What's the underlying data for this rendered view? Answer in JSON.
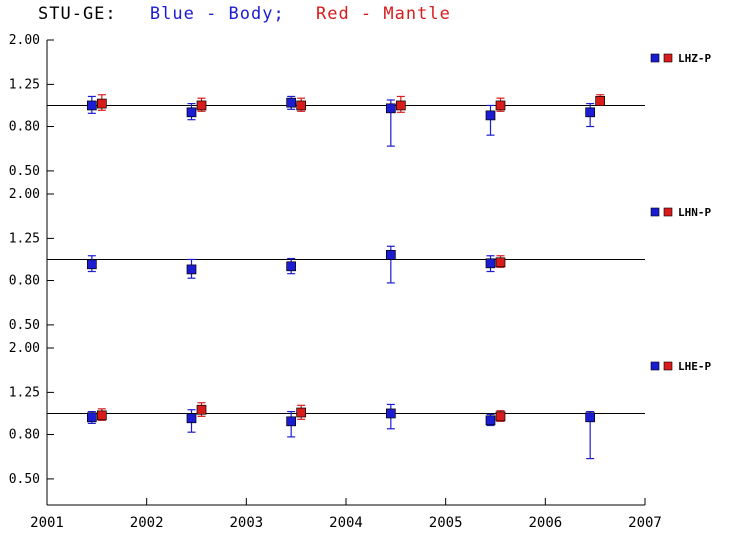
{
  "title": {
    "station": "STU-GE:",
    "legend_blue": "Blue - Body;",
    "legend_red": "Red - Mantle"
  },
  "colors": {
    "body": "#1c1cd2",
    "mantle": "#d81c1c",
    "axis": "#000000",
    "background": "#ffffff"
  },
  "axes": {
    "x_ticks": [
      2001,
      2002,
      2003,
      2004,
      2005,
      2006,
      2007
    ],
    "x_tick_labels": [
      "2001",
      "2002",
      "2003",
      "2004",
      "2005",
      "2006",
      "2007"
    ],
    "y_ticks": [
      2.0,
      1.25,
      0.8,
      0.5
    ],
    "y_tick_labels": [
      "2.00",
      "1.25",
      "0.80",
      "0.50"
    ],
    "y_scale": "log",
    "x_range": [
      2001,
      2007
    ]
  },
  "chart_data": [
    {
      "type": "scatter",
      "panel_label": "LHZ-P",
      "reference_line": 1.0,
      "series": [
        {
          "name": "Body",
          "color_key": "body",
          "points": [
            {
              "x": 2001.5,
              "y": 1.0,
              "lo": 0.92,
              "hi": 1.1
            },
            {
              "x": 2002.5,
              "y": 0.93,
              "lo": 0.86,
              "hi": 1.02
            },
            {
              "x": 2003.5,
              "y": 1.03,
              "lo": 0.96,
              "hi": 1.1
            },
            {
              "x": 2004.5,
              "y": 0.97,
              "lo": 0.65,
              "hi": 1.06
            },
            {
              "x": 2005.5,
              "y": 0.9,
              "lo": 0.73,
              "hi": 1.0
            },
            {
              "x": 2006.5,
              "y": 0.93,
              "lo": 0.8,
              "hi": 1.02
            }
          ]
        },
        {
          "name": "Mantle",
          "color_key": "mantle",
          "points": [
            {
              "x": 2001.5,
              "y": 1.02,
              "lo": 0.95,
              "hi": 1.12
            },
            {
              "x": 2002.5,
              "y": 1.0,
              "lo": 0.94,
              "hi": 1.08
            },
            {
              "x": 2003.5,
              "y": 1.0,
              "lo": 0.94,
              "hi": 1.08
            },
            {
              "x": 2004.5,
              "y": 1.0,
              "lo": 0.93,
              "hi": 1.1
            },
            {
              "x": 2005.5,
              "y": 1.0,
              "lo": 0.94,
              "hi": 1.08
            },
            {
              "x": 2006.5,
              "y": 1.05,
              "lo": 1.0,
              "hi": 1.12
            }
          ]
        }
      ]
    },
    {
      "type": "scatter",
      "panel_label": "LHN-P",
      "reference_line": 1.0,
      "series": [
        {
          "name": "Body",
          "color_key": "body",
          "points": [
            {
              "x": 2001.5,
              "y": 0.95,
              "lo": 0.88,
              "hi": 1.04
            },
            {
              "x": 2002.5,
              "y": 0.9,
              "lo": 0.82,
              "hi": 1.0
            },
            {
              "x": 2003.5,
              "y": 0.93,
              "lo": 0.86,
              "hi": 1.01
            },
            {
              "x": 2004.5,
              "y": 1.05,
              "lo": 0.78,
              "hi": 1.15
            },
            {
              "x": 2005.5,
              "y": 0.96,
              "lo": 0.88,
              "hi": 1.04
            }
          ]
        },
        {
          "name": "Mantle",
          "color_key": "mantle",
          "points": [
            {
              "x": 2005.5,
              "y": 0.97,
              "lo": 0.92,
              "hi": 1.04
            }
          ]
        }
      ]
    },
    {
      "type": "scatter",
      "panel_label": "LHE-P",
      "reference_line": 1.0,
      "series": [
        {
          "name": "Body",
          "color_key": "body",
          "points": [
            {
              "x": 2001.5,
              "y": 0.96,
              "lo": 0.9,
              "hi": 1.02
            },
            {
              "x": 2002.5,
              "y": 0.95,
              "lo": 0.82,
              "hi": 1.04
            },
            {
              "x": 2003.5,
              "y": 0.92,
              "lo": 0.78,
              "hi": 1.02
            },
            {
              "x": 2004.5,
              "y": 1.0,
              "lo": 0.85,
              "hi": 1.1
            },
            {
              "x": 2005.5,
              "y": 0.93,
              "lo": 0.88,
              "hi": 0.99
            },
            {
              "x": 2006.5,
              "y": 0.96,
              "lo": 0.62,
              "hi": 1.02
            }
          ]
        },
        {
          "name": "Mantle",
          "color_key": "mantle",
          "points": [
            {
              "x": 2001.5,
              "y": 0.98,
              "lo": 0.93,
              "hi": 1.05
            },
            {
              "x": 2002.5,
              "y": 1.04,
              "lo": 0.97,
              "hi": 1.12
            },
            {
              "x": 2003.5,
              "y": 1.01,
              "lo": 0.94,
              "hi": 1.09
            },
            {
              "x": 2005.5,
              "y": 0.97,
              "lo": 0.92,
              "hi": 1.03
            }
          ]
        }
      ]
    }
  ]
}
